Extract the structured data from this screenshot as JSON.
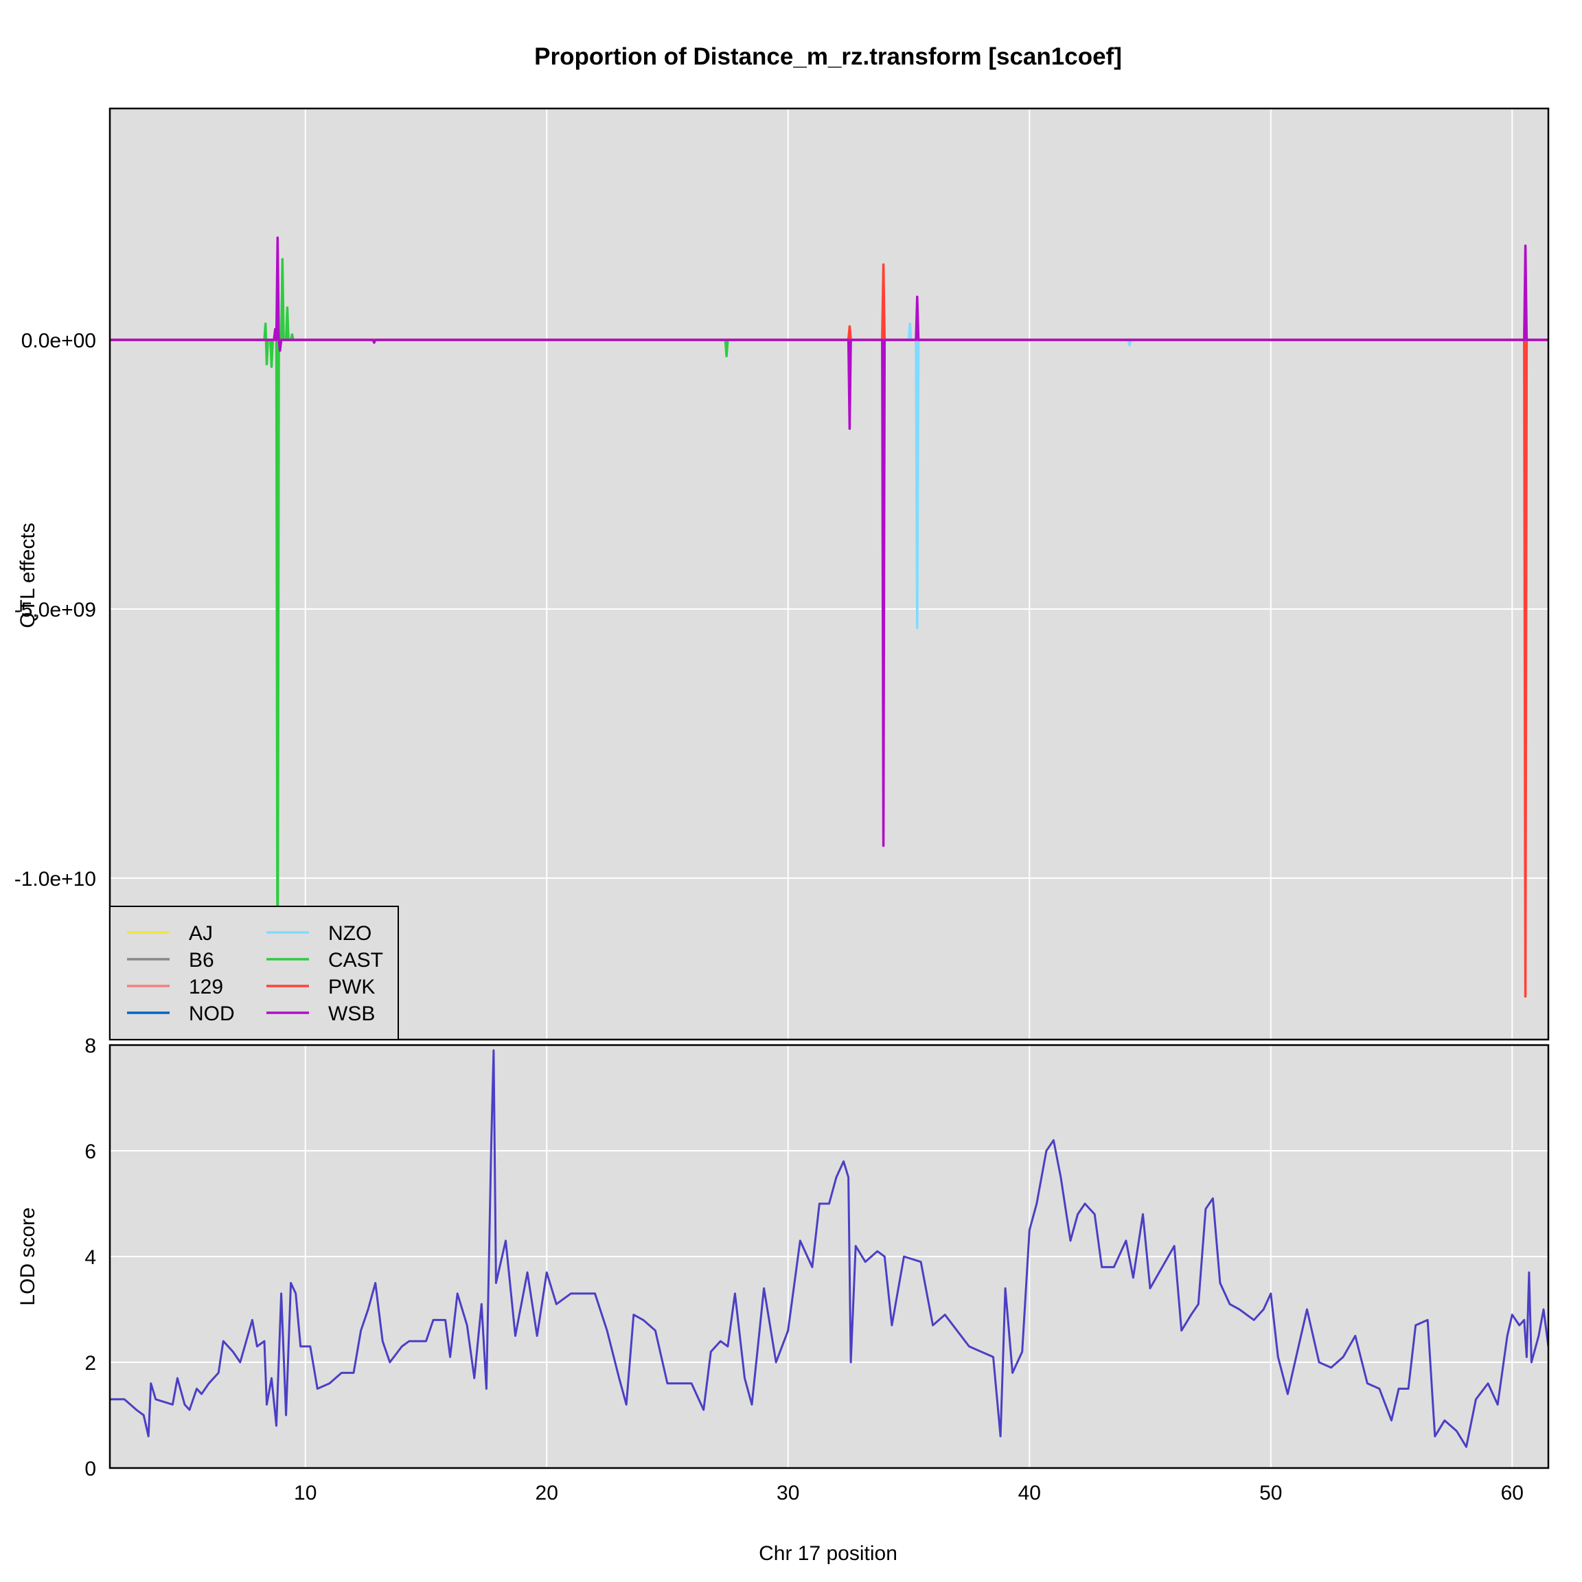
{
  "chart_data": [
    {
      "type": "line",
      "title": "Proportion of Distance_m_rz.transform [scan1coef]",
      "xlabel": "",
      "ylabel": "QTL effects",
      "xlim": [
        1.9,
        61.5
      ],
      "ylim": [
        -13000000000.0,
        4300000000.0
      ],
      "y_ticks": [
        0,
        -5000000000.0,
        -10000000000.0
      ],
      "y_tick_labels": [
        "0.0e+00",
        "-5.0e+09",
        "-1.0e+10"
      ],
      "grid": true,
      "legend_position": "bottom-left",
      "series": [
        {
          "name": "AJ",
          "color": "#F0E442",
          "points": [
            [
              1.9,
              0
            ],
            [
              61.5,
              0
            ]
          ]
        },
        {
          "name": "B6",
          "color": "#888888",
          "points": [
            [
              1.9,
              0
            ],
            [
              61.5,
              0
            ]
          ]
        },
        {
          "name": "129",
          "color": "#F08080",
          "points": [
            [
              1.9,
              0
            ],
            [
              61.5,
              0
            ]
          ]
        },
        {
          "name": "NOD",
          "color": "#0064C9",
          "points": [
            [
              1.9,
              0
            ],
            [
              61.5,
              0
            ]
          ]
        },
        {
          "name": "NZO",
          "color": "#7FDBFF",
          "points": [
            [
              1.9,
              0
            ],
            [
              35.0,
              0
            ],
            [
              35.05,
              300000000.0
            ],
            [
              35.1,
              0
            ],
            [
              35.3,
              0
            ],
            [
              35.35,
              -5350000000.0
            ],
            [
              35.4,
              0
            ],
            [
              44.1,
              0
            ],
            [
              44.15,
              -100000000.0
            ],
            [
              44.2,
              0
            ],
            [
              61.5,
              0
            ]
          ]
        },
        {
          "name": "CAST",
          "color": "#2ECC40",
          "points": [
            [
              1.9,
              0
            ],
            [
              8.3,
              0
            ],
            [
              8.35,
              300000000.0
            ],
            [
              8.4,
              -450000000.0
            ],
            [
              8.45,
              0
            ],
            [
              8.55,
              0
            ],
            [
              8.6,
              -500000000.0
            ],
            [
              8.65,
              0
            ],
            [
              8.8,
              0
            ],
            [
              8.85,
              -13000000000.0
            ],
            [
              8.9,
              0
            ],
            [
              9.0,
              0
            ],
            [
              9.05,
              1500000000.0
            ],
            [
              9.1,
              0
            ],
            [
              9.2,
              0
            ],
            [
              9.25,
              600000000.0
            ],
            [
              9.3,
              0
            ],
            [
              9.4,
              0
            ],
            [
              9.45,
              100000000.0
            ],
            [
              9.5,
              0
            ],
            [
              27.4,
              0
            ],
            [
              27.45,
              -300000000.0
            ],
            [
              27.5,
              0
            ],
            [
              61.5,
              0
            ]
          ]
        },
        {
          "name": "PWK",
          "color": "#FF4136",
          "points": [
            [
              1.9,
              0
            ],
            [
              32.5,
              0
            ],
            [
              32.55,
              250000000.0
            ],
            [
              32.6,
              0
            ],
            [
              33.9,
              0
            ],
            [
              33.95,
              1400000000.0
            ],
            [
              34.0,
              0
            ],
            [
              60.5,
              0
            ],
            [
              60.55,
              -12200000000.0
            ],
            [
              60.6,
              0
            ],
            [
              61.5,
              0
            ]
          ]
        },
        {
          "name": "WSB",
          "color": "#B10DC9",
          "points": [
            [
              1.9,
              0
            ],
            [
              8.7,
              0
            ],
            [
              8.75,
              200000000.0
            ],
            [
              8.8,
              0
            ],
            [
              8.85,
              1900000000.0
            ],
            [
              8.9,
              0
            ],
            [
              8.95,
              -200000000.0
            ],
            [
              9.0,
              0
            ],
            [
              12.8,
              0
            ],
            [
              12.85,
              -50000000.0
            ],
            [
              12.9,
              0
            ],
            [
              32.5,
              0
            ],
            [
              32.55,
              -1650000000.0
            ],
            [
              32.6,
              0
            ],
            [
              33.9,
              0
            ],
            [
              33.95,
              -9400000000.0
            ],
            [
              34.0,
              0
            ],
            [
              35.3,
              0
            ],
            [
              35.35,
              800000000.0
            ],
            [
              35.4,
              0
            ],
            [
              60.5,
              0
            ],
            [
              60.55,
              1750000000.0
            ],
            [
              60.6,
              0
            ],
            [
              61.5,
              0
            ]
          ]
        }
      ]
    },
    {
      "type": "line",
      "title": "",
      "xlabel": "Chr 17 position",
      "ylabel": "LOD score",
      "xlim": [
        1.9,
        61.5
      ],
      "ylim": [
        0,
        8
      ],
      "x_ticks": [
        10,
        20,
        30,
        40,
        50,
        60
      ],
      "y_ticks": [
        0,
        2,
        4,
        6,
        8
      ],
      "grid": true,
      "series": [
        {
          "name": "",
          "color": "#4B3FC4",
          "points": [
            [
              1.9,
              1.3
            ],
            [
              2.5,
              1.3
            ],
            [
              3.0,
              1.1
            ],
            [
              3.3,
              1.0
            ],
            [
              3.5,
              0.6
            ],
            [
              3.6,
              1.6
            ],
            [
              3.8,
              1.3
            ],
            [
              4.5,
              1.2
            ],
            [
              4.7,
              1.7
            ],
            [
              5.0,
              1.2
            ],
            [
              5.2,
              1.1
            ],
            [
              5.5,
              1.5
            ],
            [
              5.7,
              1.4
            ],
            [
              6.0,
              1.6
            ],
            [
              6.4,
              1.8
            ],
            [
              6.6,
              2.4
            ],
            [
              7.0,
              2.2
            ],
            [
              7.3,
              2.0
            ],
            [
              7.8,
              2.8
            ],
            [
              8.0,
              2.3
            ],
            [
              8.3,
              2.4
            ],
            [
              8.4,
              1.2
            ],
            [
              8.6,
              1.7
            ],
            [
              8.8,
              0.8
            ],
            [
              9.0,
              3.3
            ],
            [
              9.2,
              1.0
            ],
            [
              9.4,
              3.5
            ],
            [
              9.6,
              3.3
            ],
            [
              9.8,
              2.3
            ],
            [
              10.2,
              2.3
            ],
            [
              10.5,
              1.5
            ],
            [
              11.0,
              1.6
            ],
            [
              11.5,
              1.8
            ],
            [
              12.0,
              1.8
            ],
            [
              12.3,
              2.6
            ],
            [
              12.6,
              3.0
            ],
            [
              12.9,
              3.5
            ],
            [
              13.2,
              2.4
            ],
            [
              13.5,
              2.0
            ],
            [
              14.0,
              2.3
            ],
            [
              14.3,
              2.4
            ],
            [
              15.0,
              2.4
            ],
            [
              15.3,
              2.8
            ],
            [
              15.8,
              2.8
            ],
            [
              16.0,
              2.1
            ],
            [
              16.3,
              3.3
            ],
            [
              16.7,
              2.7
            ],
            [
              17.0,
              1.7
            ],
            [
              17.3,
              3.1
            ],
            [
              17.5,
              1.5
            ],
            [
              17.7,
              6.1
            ],
            [
              17.8,
              7.9
            ],
            [
              17.9,
              3.5
            ],
            [
              18.3,
              4.3
            ],
            [
              18.7,
              2.5
            ],
            [
              19.2,
              3.7
            ],
            [
              19.6,
              2.5
            ],
            [
              20.0,
              3.7
            ],
            [
              20.4,
              3.1
            ],
            [
              21.0,
              3.3
            ],
            [
              22.0,
              3.3
            ],
            [
              22.5,
              2.6
            ],
            [
              23.0,
              1.7
            ],
            [
              23.3,
              1.2
            ],
            [
              23.6,
              2.9
            ],
            [
              24.0,
              2.8
            ],
            [
              24.5,
              2.6
            ],
            [
              25.0,
              1.6
            ],
            [
              25.5,
              1.6
            ],
            [
              26.0,
              1.6
            ],
            [
              26.5,
              1.1
            ],
            [
              26.8,
              2.2
            ],
            [
              27.2,
              2.4
            ],
            [
              27.5,
              2.3
            ],
            [
              27.8,
              3.3
            ],
            [
              28.2,
              1.7
            ],
            [
              28.5,
              1.2
            ],
            [
              29.0,
              3.4
            ],
            [
              29.5,
              2.0
            ],
            [
              30.0,
              2.6
            ],
            [
              30.5,
              4.3
            ],
            [
              31.0,
              3.8
            ],
            [
              31.3,
              5.0
            ],
            [
              31.7,
              5.0
            ],
            [
              32.0,
              5.5
            ],
            [
              32.3,
              5.8
            ],
            [
              32.5,
              5.5
            ],
            [
              32.6,
              2.0
            ],
            [
              32.8,
              4.2
            ],
            [
              33.2,
              3.9
            ],
            [
              33.7,
              4.1
            ],
            [
              34.0,
              4.0
            ],
            [
              34.3,
              2.7
            ],
            [
              34.8,
              4.0
            ],
            [
              35.5,
              3.9
            ],
            [
              36.0,
              2.7
            ],
            [
              36.5,
              2.9
            ],
            [
              37.0,
              2.6
            ],
            [
              37.5,
              2.3
            ],
            [
              38.0,
              2.2
            ],
            [
              38.5,
              2.1
            ],
            [
              38.8,
              0.6
            ],
            [
              39.0,
              3.4
            ],
            [
              39.3,
              1.8
            ],
            [
              39.7,
              2.2
            ],
            [
              40.0,
              4.5
            ],
            [
              40.3,
              5.0
            ],
            [
              40.7,
              6.0
            ],
            [
              41.0,
              6.2
            ],
            [
              41.3,
              5.5
            ],
            [
              41.7,
              4.3
            ],
            [
              42.0,
              4.8
            ],
            [
              42.3,
              5.0
            ],
            [
              42.7,
              4.8
            ],
            [
              43.0,
              3.8
            ],
            [
              43.5,
              3.8
            ],
            [
              44.0,
              4.3
            ],
            [
              44.3,
              3.6
            ],
            [
              44.7,
              4.8
            ],
            [
              45.0,
              3.4
            ],
            [
              45.5,
              3.8
            ],
            [
              46.0,
              4.2
            ],
            [
              46.3,
              2.6
            ],
            [
              46.7,
              2.9
            ],
            [
              47.0,
              3.1
            ],
            [
              47.3,
              4.9
            ],
            [
              47.6,
              5.1
            ],
            [
              47.9,
              3.5
            ],
            [
              48.3,
              3.1
            ],
            [
              48.7,
              3.0
            ],
            [
              49.3,
              2.8
            ],
            [
              49.7,
              3.0
            ],
            [
              50.0,
              3.3
            ],
            [
              50.3,
              2.1
            ],
            [
              50.7,
              1.4
            ],
            [
              51.0,
              2.0
            ],
            [
              51.5,
              3.0
            ],
            [
              52.0,
              2.0
            ],
            [
              52.5,
              1.9
            ],
            [
              53.0,
              2.1
            ],
            [
              53.5,
              2.5
            ],
            [
              54.0,
              1.6
            ],
            [
              54.5,
              1.5
            ],
            [
              55.0,
              0.9
            ],
            [
              55.3,
              1.5
            ],
            [
              55.7,
              1.5
            ],
            [
              56.0,
              2.7
            ],
            [
              56.5,
              2.8
            ],
            [
              56.8,
              0.6
            ],
            [
              57.2,
              0.9
            ],
            [
              57.7,
              0.7
            ],
            [
              58.1,
              0.4
            ],
            [
              58.5,
              1.3
            ],
            [
              59.0,
              1.6
            ],
            [
              59.4,
              1.2
            ],
            [
              59.8,
              2.5
            ],
            [
              60.0,
              2.9
            ],
            [
              60.3,
              2.7
            ],
            [
              60.5,
              2.8
            ],
            [
              60.6,
              2.1
            ],
            [
              60.7,
              3.7
            ],
            [
              60.8,
              2.0
            ],
            [
              61.1,
              2.5
            ],
            [
              61.3,
              3.0
            ],
            [
              61.5,
              2.3
            ]
          ]
        }
      ]
    }
  ]
}
